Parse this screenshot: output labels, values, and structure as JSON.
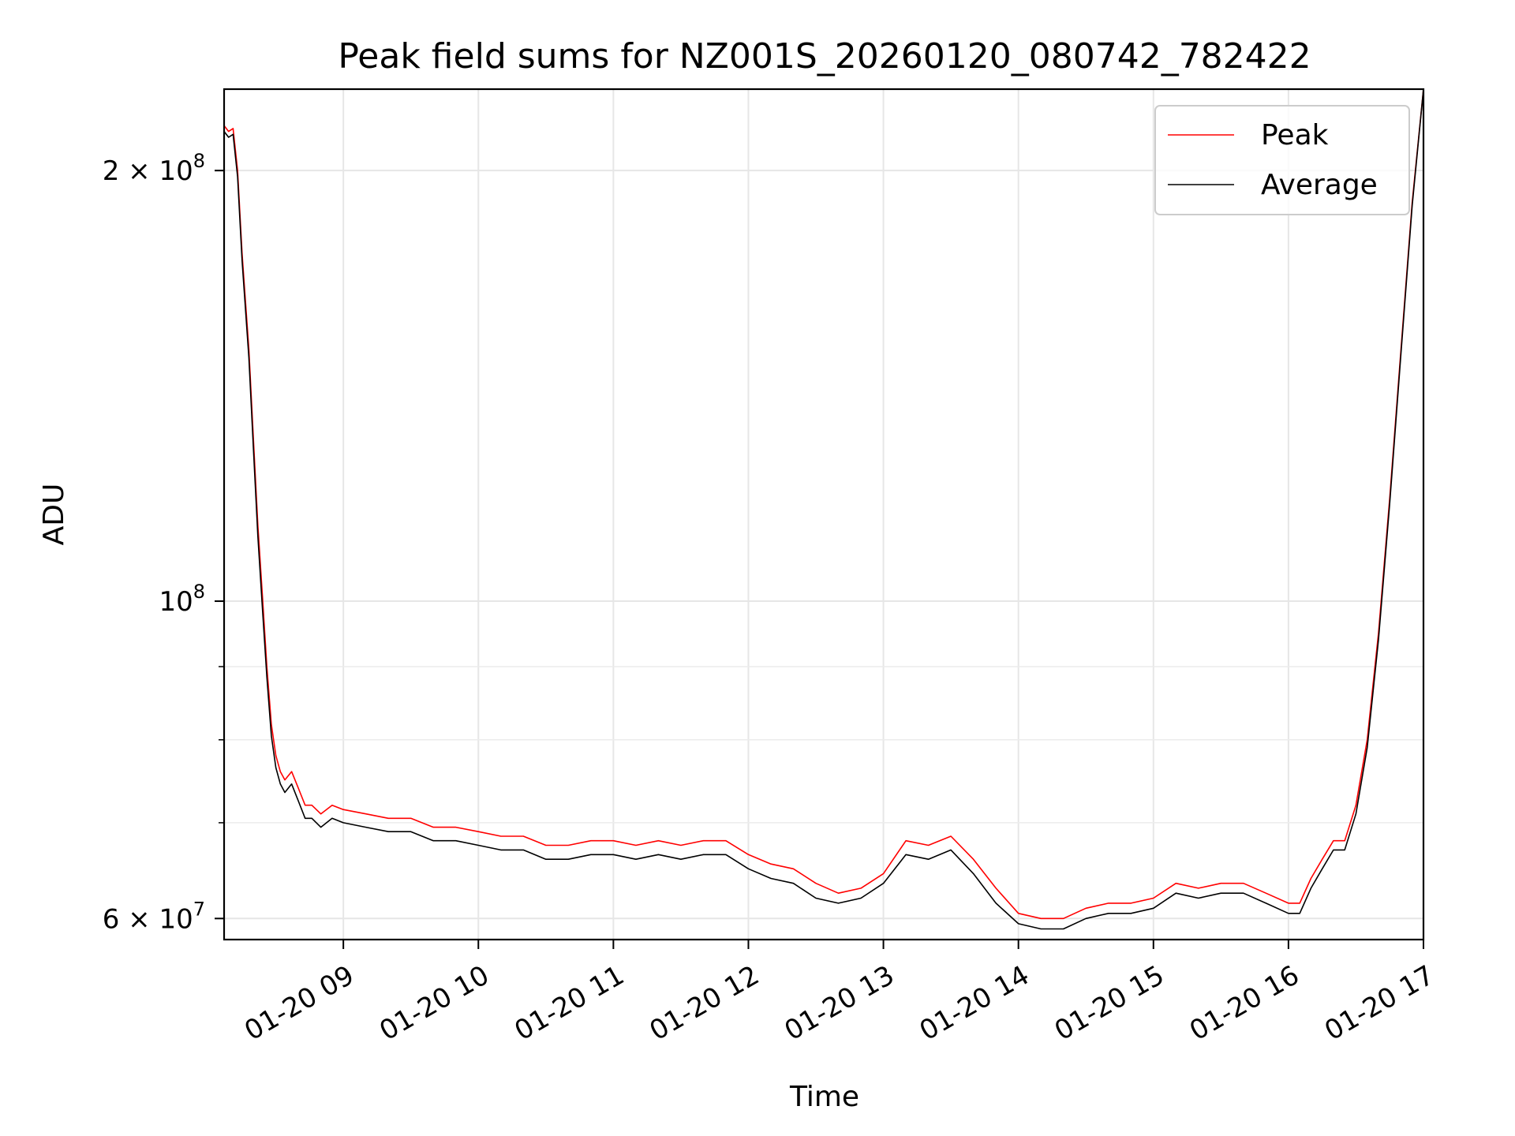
{
  "chart_data": {
    "type": "line",
    "title": "Peak field sums for NZ001S_20260120_080742_782422",
    "xlabel": "Time",
    "ylabel": "ADU",
    "yscale": "log",
    "grid": true,
    "legend_position": "top-right",
    "xlim": [
      "2026-01-20 08:07",
      "2026-01-20 17:00"
    ],
    "ylim": [
      58000000,
      228000000
    ],
    "x_ticks": [
      {
        "value": "2026-01-20 09:00",
        "label": "01-20 09"
      },
      {
        "value": "2026-01-20 10:00",
        "label": "01-20 10"
      },
      {
        "value": "2026-01-20 11:00",
        "label": "01-20 11"
      },
      {
        "value": "2026-01-20 12:00",
        "label": "01-20 12"
      },
      {
        "value": "2026-01-20 13:00",
        "label": "01-20 13"
      },
      {
        "value": "2026-01-20 14:00",
        "label": "01-20 14"
      },
      {
        "value": "2026-01-20 15:00",
        "label": "01-20 15"
      },
      {
        "value": "2026-01-20 16:00",
        "label": "01-20 16"
      },
      {
        "value": "2026-01-20 17:00",
        "label": "01-20 17"
      }
    ],
    "y_major_ticks": [
      {
        "value": 60000000,
        "mantissa": "6",
        "exponent": "7"
      },
      {
        "value": 100000000,
        "mantissa": "",
        "exponent": "8"
      },
      {
        "value": 200000000,
        "mantissa": "2",
        "exponent": "8"
      }
    ],
    "y_minor_ticks": [
      70000000,
      80000000,
      90000000
    ],
    "series": [
      {
        "name": "Peak",
        "color": "#ff0000",
        "x": [
          "2026-01-20 08:07",
          "2026-01-20 08:09",
          "2026-01-20 08:11",
          "2026-01-20 08:13",
          "2026-01-20 08:15",
          "2026-01-20 08:18",
          "2026-01-20 08:20",
          "2026-01-20 08:22",
          "2026-01-20 08:24",
          "2026-01-20 08:26",
          "2026-01-20 08:28",
          "2026-01-20 08:30",
          "2026-01-20 08:32",
          "2026-01-20 08:34",
          "2026-01-20 08:37",
          "2026-01-20 08:40",
          "2026-01-20 08:43",
          "2026-01-20 08:46",
          "2026-01-20 08:50",
          "2026-01-20 08:55",
          "2026-01-20 09:00",
          "2026-01-20 09:10",
          "2026-01-20 09:20",
          "2026-01-20 09:30",
          "2026-01-20 09:40",
          "2026-01-20 09:50",
          "2026-01-20 10:00",
          "2026-01-20 10:10",
          "2026-01-20 10:20",
          "2026-01-20 10:30",
          "2026-01-20 10:40",
          "2026-01-20 10:50",
          "2026-01-20 11:00",
          "2026-01-20 11:10",
          "2026-01-20 11:20",
          "2026-01-20 11:30",
          "2026-01-20 11:40",
          "2026-01-20 11:50",
          "2026-01-20 12:00",
          "2026-01-20 12:10",
          "2026-01-20 12:20",
          "2026-01-20 12:30",
          "2026-01-20 12:40",
          "2026-01-20 12:50",
          "2026-01-20 13:00",
          "2026-01-20 13:10",
          "2026-01-20 13:20",
          "2026-01-20 13:30",
          "2026-01-20 13:40",
          "2026-01-20 13:50",
          "2026-01-20 14:00",
          "2026-01-20 14:10",
          "2026-01-20 14:20",
          "2026-01-20 14:30",
          "2026-01-20 14:40",
          "2026-01-20 14:50",
          "2026-01-20 15:00",
          "2026-01-20 15:10",
          "2026-01-20 15:20",
          "2026-01-20 15:30",
          "2026-01-20 15:40",
          "2026-01-20 15:50",
          "2026-01-20 16:00",
          "2026-01-20 16:05",
          "2026-01-20 16:10",
          "2026-01-20 16:15",
          "2026-01-20 16:20",
          "2026-01-20 16:25",
          "2026-01-20 16:30",
          "2026-01-20 16:35",
          "2026-01-20 16:40",
          "2026-01-20 16:45",
          "2026-01-20 16:50",
          "2026-01-20 16:55",
          "2026-01-20 17:00"
        ],
        "y": [
          215000000,
          213000000,
          214000000,
          200000000,
          175000000,
          150000000,
          130000000,
          113000000,
          101000000,
          90000000,
          82000000,
          78000000,
          76000000,
          75000000,
          76000000,
          74000000,
          72000000,
          72000000,
          71000000,
          72000000,
          71500000,
          71000000,
          70500000,
          70500000,
          69500000,
          69500000,
          69000000,
          68500000,
          68500000,
          67500000,
          67500000,
          68000000,
          68000000,
          67500000,
          68000000,
          67500000,
          68000000,
          68000000,
          66500000,
          65500000,
          65000000,
          63500000,
          62500000,
          63000000,
          64500000,
          68000000,
          67500000,
          68500000,
          66000000,
          63000000,
          60500000,
          60000000,
          60000000,
          61000000,
          61500000,
          61500000,
          62000000,
          63500000,
          63000000,
          63500000,
          63500000,
          62500000,
          61500000,
          61500000,
          64000000,
          66000000,
          68000000,
          68000000,
          72000000,
          80000000,
          95000000,
          118000000,
          150000000,
          190000000,
          228000000
        ]
      },
      {
        "name": "Average",
        "color": "#000000",
        "x": [
          "2026-01-20 08:07",
          "2026-01-20 08:09",
          "2026-01-20 08:11",
          "2026-01-20 08:13",
          "2026-01-20 08:15",
          "2026-01-20 08:18",
          "2026-01-20 08:20",
          "2026-01-20 08:22",
          "2026-01-20 08:24",
          "2026-01-20 08:26",
          "2026-01-20 08:28",
          "2026-01-20 08:30",
          "2026-01-20 08:32",
          "2026-01-20 08:34",
          "2026-01-20 08:37",
          "2026-01-20 08:40",
          "2026-01-20 08:43",
          "2026-01-20 08:46",
          "2026-01-20 08:50",
          "2026-01-20 08:55",
          "2026-01-20 09:00",
          "2026-01-20 09:10",
          "2026-01-20 09:20",
          "2026-01-20 09:30",
          "2026-01-20 09:40",
          "2026-01-20 09:50",
          "2026-01-20 10:00",
          "2026-01-20 10:10",
          "2026-01-20 10:20",
          "2026-01-20 10:30",
          "2026-01-20 10:40",
          "2026-01-20 10:50",
          "2026-01-20 11:00",
          "2026-01-20 11:10",
          "2026-01-20 11:20",
          "2026-01-20 11:30",
          "2026-01-20 11:40",
          "2026-01-20 11:50",
          "2026-01-20 12:00",
          "2026-01-20 12:10",
          "2026-01-20 12:20",
          "2026-01-20 12:30",
          "2026-01-20 12:40",
          "2026-01-20 12:50",
          "2026-01-20 13:00",
          "2026-01-20 13:10",
          "2026-01-20 13:20",
          "2026-01-20 13:30",
          "2026-01-20 13:40",
          "2026-01-20 13:50",
          "2026-01-20 14:00",
          "2026-01-20 14:10",
          "2026-01-20 14:20",
          "2026-01-20 14:30",
          "2026-01-20 14:40",
          "2026-01-20 14:50",
          "2026-01-20 15:00",
          "2026-01-20 15:10",
          "2026-01-20 15:20",
          "2026-01-20 15:30",
          "2026-01-20 15:40",
          "2026-01-20 15:50",
          "2026-01-20 16:00",
          "2026-01-20 16:05",
          "2026-01-20 16:10",
          "2026-01-20 16:15",
          "2026-01-20 16:20",
          "2026-01-20 16:25",
          "2026-01-20 16:30",
          "2026-01-20 16:35",
          "2026-01-20 16:40",
          "2026-01-20 16:45",
          "2026-01-20 16:50",
          "2026-01-20 16:55",
          "2026-01-20 17:00"
        ],
        "y": [
          213000000,
          211000000,
          212000000,
          198000000,
          173000000,
          148000000,
          128000000,
          111000000,
          99000000,
          88500000,
          80500000,
          76500000,
          74500000,
          73500000,
          74500000,
          72500000,
          70500000,
          70500000,
          69500000,
          70500000,
          70000000,
          69500000,
          69000000,
          69000000,
          68000000,
          68000000,
          67500000,
          67000000,
          67000000,
          66000000,
          66000000,
          66500000,
          66500000,
          66000000,
          66500000,
          66000000,
          66500000,
          66500000,
          65000000,
          64000000,
          63500000,
          62000000,
          61500000,
          62000000,
          63500000,
          66500000,
          66000000,
          67000000,
          64500000,
          61500000,
          59500000,
          59000000,
          59000000,
          60000000,
          60500000,
          60500000,
          61000000,
          62500000,
          62000000,
          62500000,
          62500000,
          61500000,
          60500000,
          60500000,
          63000000,
          65000000,
          67000000,
          67000000,
          71000000,
          79000000,
          94000000,
          117000000,
          149000000,
          189000000,
          228000000
        ]
      }
    ]
  }
}
